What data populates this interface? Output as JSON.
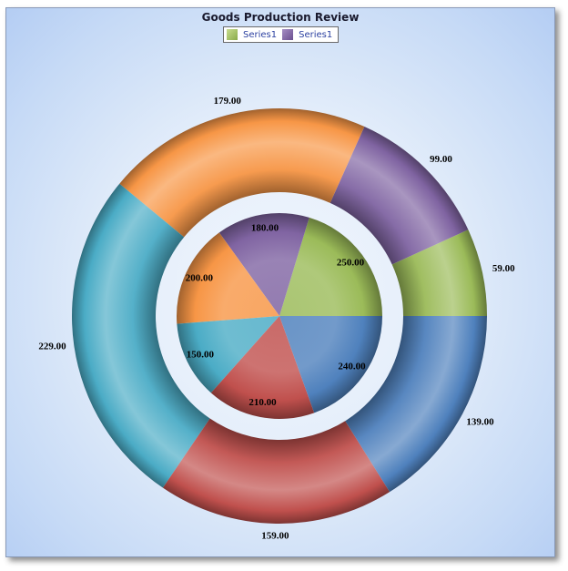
{
  "chart_data": {
    "type": "pie",
    "title": "Goods Production Review",
    "legend": {
      "placement": "top-center",
      "entries": [
        {
          "name": "Series1",
          "color": "#9bbb59"
        },
        {
          "name": "Series1",
          "color": "#8064a2"
        }
      ]
    },
    "series": [
      {
        "name": "Series1",
        "ring": "outer",
        "values": [
          59,
          99,
          179,
          229,
          159,
          139
        ],
        "labels": [
          "59.00",
          "99.00",
          "179.00",
          "229.00",
          "159.00",
          "139.00"
        ],
        "colors": [
          "#9bbb59",
          "#8064a2",
          "#f79646",
          "#4bacc6",
          "#c0504d",
          "#4f81bd"
        ]
      },
      {
        "name": "Series1",
        "ring": "inner",
        "values": [
          250,
          180,
          200,
          150,
          210,
          240
        ],
        "labels": [
          "250.00",
          "180.00",
          "200.00",
          "150.00",
          "210.00",
          "240.00"
        ],
        "colors": [
          "#9bbb59",
          "#8064a2",
          "#f79646",
          "#4bacc6",
          "#c0504d",
          "#4f81bd"
        ]
      }
    ]
  }
}
